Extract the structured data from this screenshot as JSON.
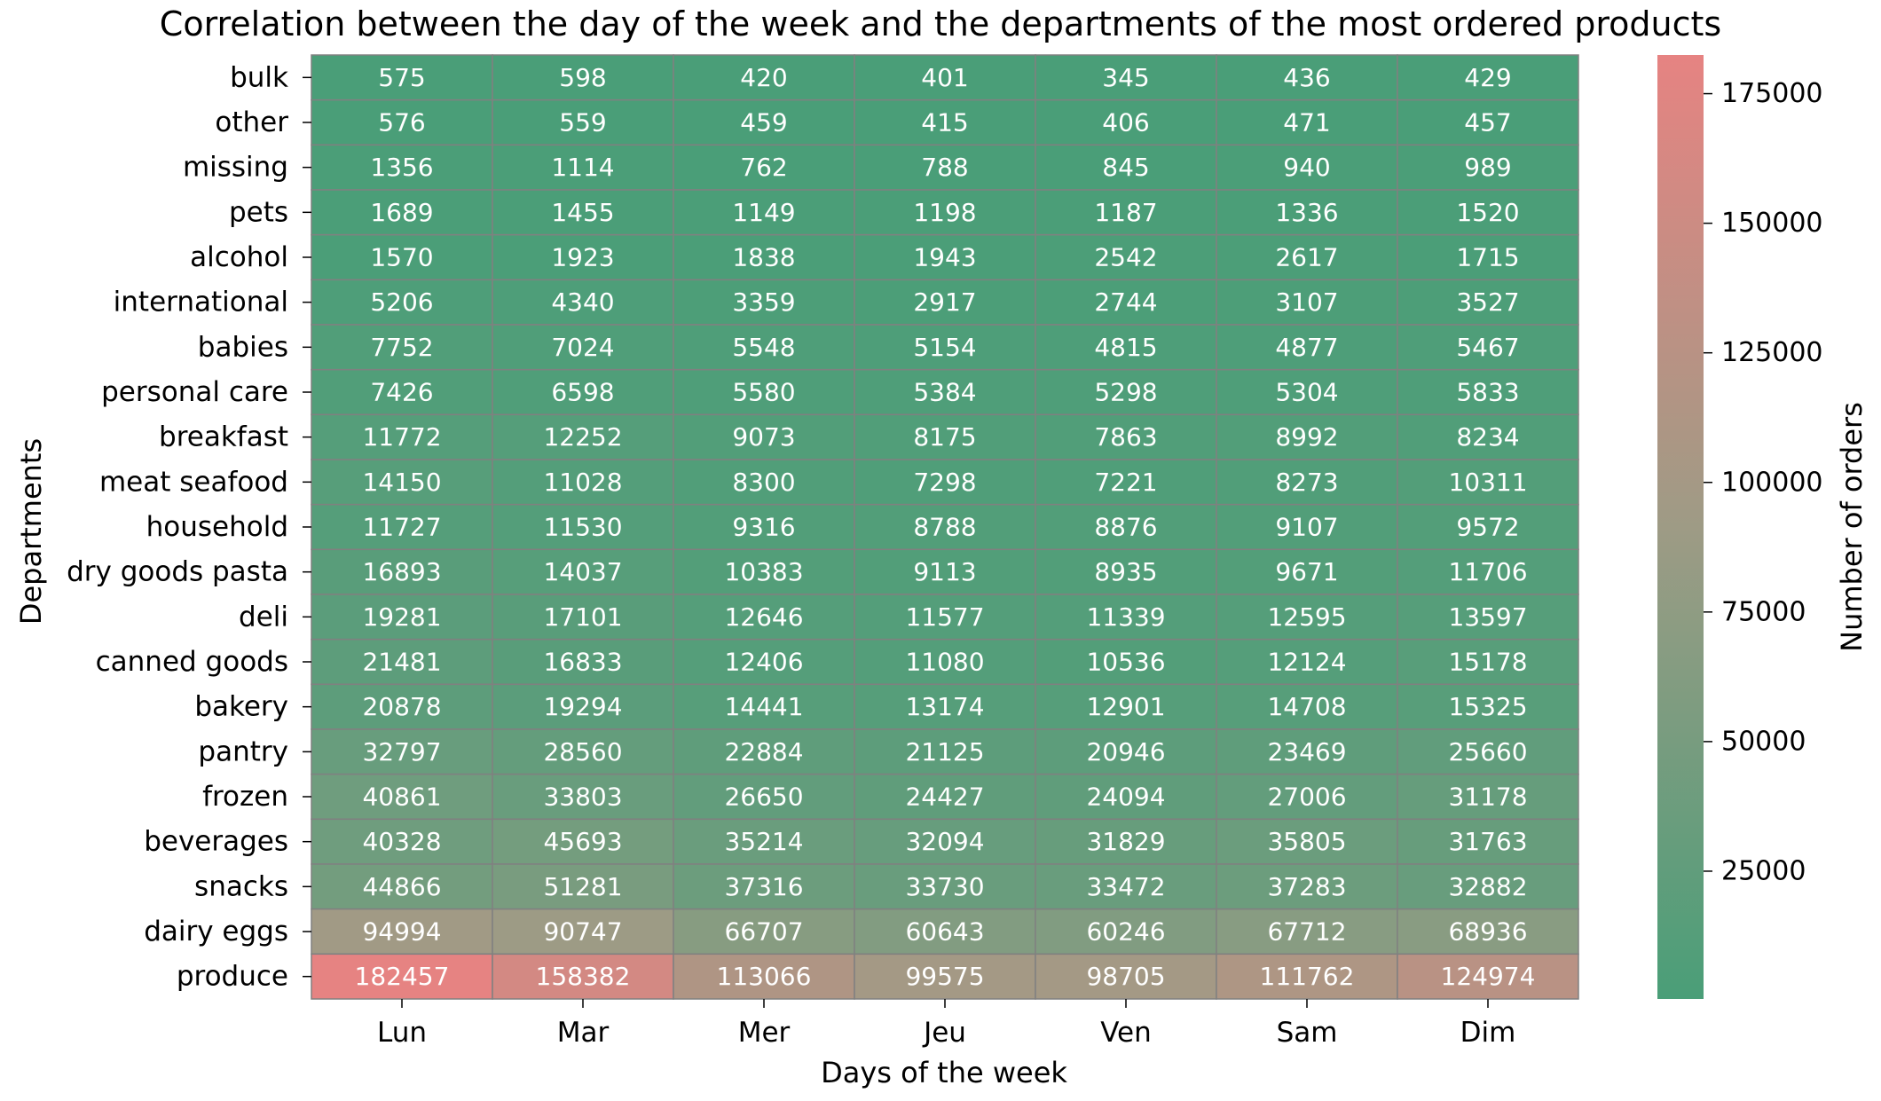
{
  "chart_data": {
    "type": "heatmap",
    "title": "Correlation between the day of the week and the departments of the most ordered products",
    "xlabel": "Days of the week",
    "ylabel": "Departments",
    "colorbar_label": "Number of orders",
    "x_categories": [
      "Lun",
      "Mar",
      "Mer",
      "Jeu",
      "Ven",
      "Sam",
      "Dim"
    ],
    "y_categories": [
      "bulk",
      "other",
      "missing",
      "pets",
      "alcohol",
      "international",
      "babies",
      "personal care",
      "breakfast",
      "meat seafood",
      "household",
      "dry goods pasta",
      "deli",
      "canned goods",
      "bakery",
      "pantry",
      "frozen",
      "beverages",
      "snacks",
      "dairy eggs",
      "produce"
    ],
    "values": [
      [
        575,
        598,
        420,
        401,
        345,
        436,
        429
      ],
      [
        576,
        559,
        459,
        415,
        406,
        471,
        457
      ],
      [
        1356,
        1114,
        762,
        788,
        845,
        940,
        989
      ],
      [
        1689,
        1455,
        1149,
        1198,
        1187,
        1336,
        1520
      ],
      [
        1570,
        1923,
        1838,
        1943,
        2542,
        2617,
        1715
      ],
      [
        5206,
        4340,
        3359,
        2917,
        2744,
        3107,
        3527
      ],
      [
        7752,
        7024,
        5548,
        5154,
        4815,
        4877,
        5467
      ],
      [
        7426,
        6598,
        5580,
        5384,
        5298,
        5304,
        5833
      ],
      [
        11772,
        12252,
        9073,
        8175,
        7863,
        8992,
        8234
      ],
      [
        14150,
        11028,
        8300,
        7298,
        7221,
        8273,
        10311
      ],
      [
        11727,
        11530,
        9316,
        8788,
        8876,
        9107,
        9572
      ],
      [
        16893,
        14037,
        10383,
        9113,
        8935,
        9671,
        11706
      ],
      [
        19281,
        17101,
        12646,
        11577,
        11339,
        12595,
        13597
      ],
      [
        21481,
        16833,
        12406,
        11080,
        10536,
        12124,
        15178
      ],
      [
        20878,
        19294,
        14441,
        13174,
        12901,
        14708,
        15325
      ],
      [
        32797,
        28560,
        22884,
        21125,
        20946,
        23469,
        25660
      ],
      [
        40861,
        33803,
        26650,
        24427,
        24094,
        27006,
        31178
      ],
      [
        40328,
        45693,
        35214,
        32094,
        31829,
        35805,
        31763
      ],
      [
        44866,
        51281,
        37316,
        33730,
        33472,
        37283,
        32882
      ],
      [
        94994,
        90747,
        66707,
        60643,
        60246,
        67712,
        68936
      ],
      [
        182457,
        158382,
        113066,
        99575,
        98705,
        111762,
        124974
      ]
    ],
    "colorbar_range": [
      345,
      182457
    ],
    "colorbar_ticks": [
      25000,
      50000,
      75000,
      100000,
      125000,
      150000,
      175000
    ],
    "colormap": {
      "low": "#4a9e78",
      "mid": "#9e9b85",
      "high": "#e68382"
    },
    "annotation_color": "#ffffff",
    "cell_border_color": "#808080",
    "grid": false
  }
}
